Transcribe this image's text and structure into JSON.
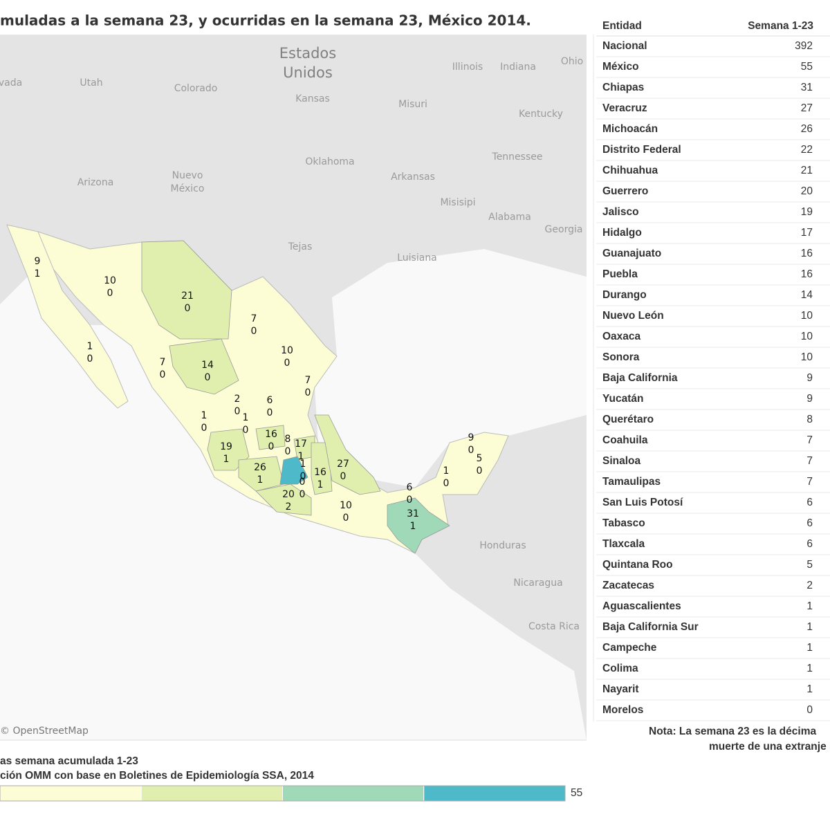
{
  "title": "muladas a la semana 23, y ocurridas en la semana 23, México 2014.",
  "map": {
    "place_labels": [
      "Estados",
      "Unidos",
      "vada",
      "Utah",
      "Colorado",
      "Kansas",
      "Misuri",
      "Illinois",
      "Indiana",
      "Ohio",
      "Kentucky",
      "Tennessee",
      "Oklahoma",
      "Arkansas",
      "Arizona",
      "Nuevo",
      "México",
      "Tejas",
      "Luisiana",
      "Misisipi",
      "Alabama",
      "Georgia",
      "Honduras",
      "Nicaragua",
      "Costa Rica"
    ],
    "state_labels": [
      {
        "total": 9,
        "week": 1
      },
      {
        "total": 10,
        "week": 0
      },
      {
        "total": 21,
        "week": 0
      },
      {
        "total": 7,
        "week": 0
      },
      {
        "total": 10,
        "week": 0
      },
      {
        "total": 7,
        "week": 0
      },
      {
        "total": 1,
        "week": 0
      },
      {
        "total": 7,
        "week": 0
      },
      {
        "total": 14,
        "week": 0
      },
      {
        "total": 2,
        "week": 0
      },
      {
        "total": 6,
        "week": 0
      },
      {
        "total": 1,
        "week": 0
      },
      {
        "total": 1,
        "week": 0
      },
      {
        "total": 16,
        "week": 0
      },
      {
        "total": 8,
        "week": 0
      },
      {
        "total": 17,
        "week": 1
      },
      {
        "total": 19,
        "week": 1
      },
      {
        "total": 26,
        "week": 1
      },
      {
        "total": 1,
        "week": 0
      },
      {
        "total": 0,
        "week": 0
      },
      {
        "total": 16,
        "week": 1
      },
      {
        "total": 27,
        "week": 0
      },
      {
        "total": 20,
        "week": 2
      },
      {
        "total": 10,
        "week": 0
      },
      {
        "total": 6,
        "week": 0
      },
      {
        "total": 31,
        "week": 1
      },
      {
        "total": 1,
        "week": 0
      },
      {
        "total": 9,
        "week": 0
      },
      {
        "total": 5,
        "week": 0
      }
    ],
    "attribution": "© OpenStreetMap"
  },
  "legend": {
    "title": "as semana acumulada 1-23",
    "source": "ción OMM con base en Boletines de Epidemiología SSA, 2014",
    "max": 55,
    "colors": [
      "#fcfdd5",
      "#e1efae",
      "#9fd9b7",
      "#4db9c9"
    ]
  },
  "table": {
    "header": [
      "Entidad",
      "Semana 1-23"
    ],
    "rows": [
      [
        "Nacional",
        392
      ],
      [
        "México",
        55
      ],
      [
        "Chiapas",
        31
      ],
      [
        "Veracruz",
        27
      ],
      [
        "Michoacán",
        26
      ],
      [
        "Distrito Federal",
        22
      ],
      [
        "Chihuahua",
        21
      ],
      [
        "Guerrero",
        20
      ],
      [
        "Jalisco",
        19
      ],
      [
        "Hidalgo",
        17
      ],
      [
        "Guanajuato",
        16
      ],
      [
        "Puebla",
        16
      ],
      [
        "Durango",
        14
      ],
      [
        "Nuevo León",
        10
      ],
      [
        "Oaxaca",
        10
      ],
      [
        "Sonora",
        10
      ],
      [
        "Baja California",
        9
      ],
      [
        "Yucatán",
        9
      ],
      [
        "Querétaro",
        8
      ],
      [
        "Coahuila",
        7
      ],
      [
        "Sinaloa",
        7
      ],
      [
        "Tamaulipas",
        7
      ],
      [
        "San Luis Potosí",
        6
      ],
      [
        "Tabasco",
        6
      ],
      [
        "Tlaxcala",
        6
      ],
      [
        "Quintana Roo",
        5
      ],
      [
        "Zacatecas",
        2
      ],
      [
        "Aguascalientes",
        1
      ],
      [
        "Baja California Sur",
        1
      ],
      [
        "Campeche",
        1
      ],
      [
        "Colima",
        1
      ],
      [
        "Nayarit",
        1
      ],
      [
        "Morelos",
        0
      ]
    ]
  },
  "note": {
    "label": "Nota",
    "line1": ": La semana 23 es la décima",
    "line2": "muerte de una extranje"
  }
}
